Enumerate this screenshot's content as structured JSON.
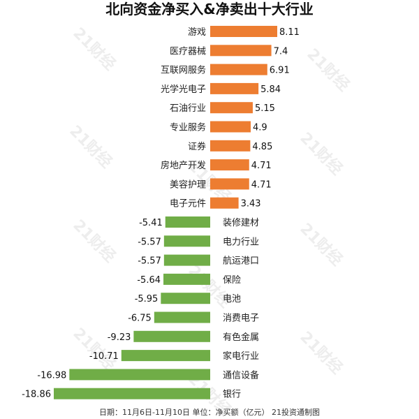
{
  "chart_data": {
    "type": "bar",
    "orientation": "horizontal",
    "title": "北向资金净买入&净卖出十大行业",
    "categories": [
      "游戏",
      "医疗器械",
      "互联网服务",
      "光学光电子",
      "石油行业",
      "专业服务",
      "证券",
      "房地产开发",
      "美容护理",
      "电子元件",
      "装修建材",
      "电力行业",
      "航运港口",
      "保险",
      "电池",
      "消费电子",
      "有色金属",
      "家电行业",
      "通信设备",
      "银行"
    ],
    "values": [
      8.11,
      7.4,
      6.91,
      5.84,
      5.15,
      4.9,
      4.85,
      4.71,
      4.71,
      3.43,
      -5.41,
      -5.57,
      -5.57,
      -5.64,
      -5.95,
      -6.75,
      -9.23,
      -10.71,
      -16.98,
      -18.86
    ],
    "value_labels": [
      "8.11",
      "7.4",
      "6.91",
      "5.84",
      "5.15",
      "4.9",
      "4.85",
      "4.71",
      "4.71",
      "3.43",
      "-5.41",
      "-5.57",
      "-5.57",
      "-5.64",
      "-5.95",
      "-6.75",
      "-9.23",
      "-10.71",
      "-16.98",
      "-18.86"
    ],
    "positive_color": "#ed7d31",
    "negative_color": "#70ad47",
    "grid": false,
    "legend": "none",
    "footer": "日期：11月6日-11月10日 单位：净买额（亿元） 21投资通制图",
    "watermark": "21财经"
  }
}
